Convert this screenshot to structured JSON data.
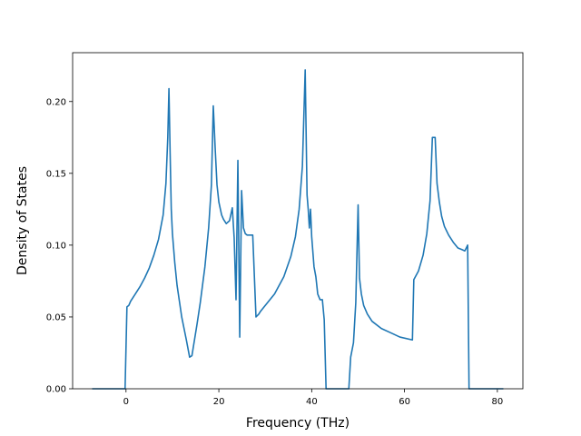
{
  "chart_data": {
    "type": "line",
    "title": "",
    "xlabel": "Frequency (THz)",
    "ylabel": "Density of States",
    "xlim": [
      -11.5,
      85.5
    ],
    "ylim": [
      0.0,
      0.234
    ],
    "xticks": [
      0,
      20,
      40,
      60,
      80
    ],
    "xtick_labels": [
      "0",
      "20",
      "40",
      "60",
      "80"
    ],
    "yticks": [
      0.0,
      0.05,
      0.1,
      0.15,
      0.2
    ],
    "ytick_labels": [
      "0.00",
      "0.05",
      "0.10",
      "0.15",
      "0.20"
    ],
    "grid": false,
    "legend": "none",
    "line_color": "#1f77b4",
    "series": [
      {
        "x": [
          -7.3,
          -0.2,
          0.2,
          0.6,
          1.0,
          1.4,
          2.0,
          3.0,
          4.0,
          5.0,
          6.0,
          7.0,
          8.0,
          8.6,
          9.0,
          9.25,
          9.5,
          9.75,
          10.0,
          10.5,
          11.0,
          12.0,
          13.0,
          13.7,
          14.2,
          14.7,
          15.3,
          16.0,
          17.0,
          17.8,
          18.4,
          18.8,
          19.2,
          19.6,
          20.0,
          20.6,
          21.0,
          21.6,
          22.3,
          22.9,
          23.3,
          23.7,
          24.1,
          24.5,
          24.9,
          25.3,
          25.7,
          26.1,
          26.6,
          27.3,
          28.0,
          28.6,
          29.0,
          30.0,
          32.0,
          34.0,
          35.5,
          36.5,
          37.3,
          38.0,
          38.6,
          39.0,
          39.25,
          39.5,
          39.75,
          40.0,
          40.5,
          40.9,
          41.3,
          41.8,
          42.3,
          42.7,
          43.1,
          43.5,
          44.0,
          44.5,
          48.0,
          48.4,
          49.0,
          49.5,
          50.0,
          50.3,
          50.7,
          51.2,
          52.0,
          53.0,
          55.0,
          57.0,
          59.0,
          61.7,
          62.0,
          63.0,
          64.0,
          64.8,
          65.5,
          66.0,
          66.6,
          67.0,
          67.5,
          68.0,
          68.6,
          69.5,
          70.5,
          71.5,
          72.3,
          73.0,
          73.6,
          73.9,
          74.1,
          74.4,
          81.3
        ],
        "y": [
          0.0,
          0.0,
          0.057,
          0.058,
          0.061,
          0.063,
          0.066,
          0.071,
          0.077,
          0.084,
          0.093,
          0.104,
          0.121,
          0.143,
          0.175,
          0.209,
          0.165,
          0.125,
          0.108,
          0.088,
          0.072,
          0.05,
          0.034,
          0.022,
          0.023,
          0.033,
          0.045,
          0.06,
          0.085,
          0.112,
          0.142,
          0.197,
          0.168,
          0.142,
          0.13,
          0.121,
          0.118,
          0.115,
          0.117,
          0.126,
          0.105,
          0.062,
          0.159,
          0.036,
          0.138,
          0.112,
          0.108,
          0.107,
          0.107,
          0.107,
          0.05,
          0.052,
          0.054,
          0.058,
          0.066,
          0.078,
          0.092,
          0.106,
          0.125,
          0.155,
          0.222,
          0.135,
          0.125,
          0.112,
          0.125,
          0.106,
          0.085,
          0.078,
          0.066,
          0.062,
          0.062,
          0.048,
          0.0,
          0.0,
          0.0,
          0.0,
          0.0,
          0.022,
          0.032,
          0.06,
          0.128,
          0.077,
          0.066,
          0.058,
          0.052,
          0.047,
          0.042,
          0.039,
          0.036,
          0.034,
          0.076,
          0.082,
          0.093,
          0.108,
          0.131,
          0.175,
          0.175,
          0.143,
          0.13,
          0.12,
          0.113,
          0.107,
          0.102,
          0.098,
          0.097,
          0.096,
          0.1,
          0.0,
          0.0,
          0.0,
          0.0
        ]
      }
    ]
  }
}
